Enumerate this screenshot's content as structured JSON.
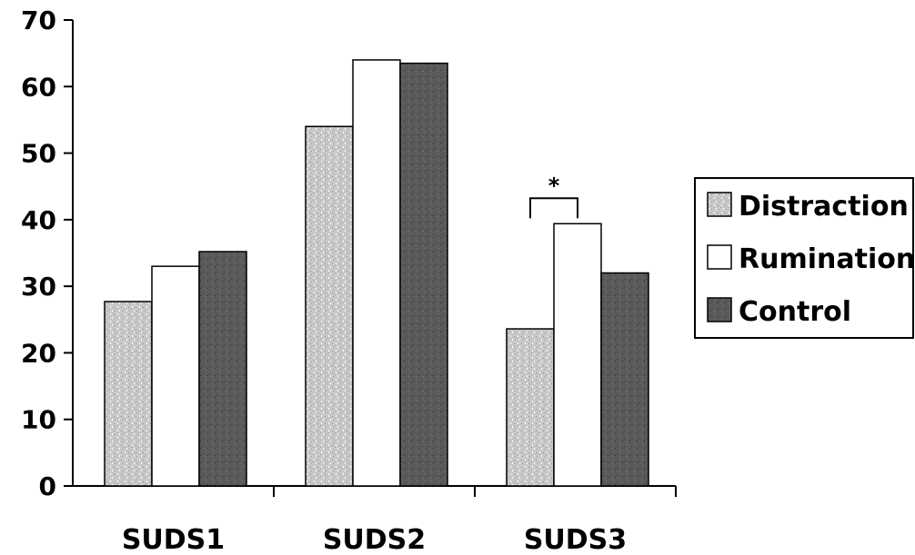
{
  "chart_data": {
    "type": "bar",
    "categories": [
      "SUDS1",
      "SUDS2",
      "SUDS3"
    ],
    "series": [
      {
        "name": "Distraction",
        "values": [
          27.7,
          54.0,
          23.6
        ],
        "color": "#c8c8c8",
        "pattern": "speckled-light"
      },
      {
        "name": "Rumination",
        "values": [
          33.0,
          64.0,
          39.4
        ],
        "color": "#ffffff",
        "pattern": "none"
      },
      {
        "name": "Control",
        "values": [
          35.2,
          63.5,
          32.0
        ],
        "color": "#555555",
        "pattern": "speckled-dark"
      }
    ],
    "ylim": [
      0,
      70
    ],
    "yticks": [
      0,
      10,
      20,
      30,
      40,
      50,
      60,
      70
    ],
    "xlabel": "",
    "ylabel": "",
    "title": "",
    "grid": false,
    "legend_position": "right",
    "annotations": [
      {
        "text": "*",
        "category": "SUDS3",
        "between": [
          "Distraction",
          "Rumination"
        ]
      }
    ]
  }
}
